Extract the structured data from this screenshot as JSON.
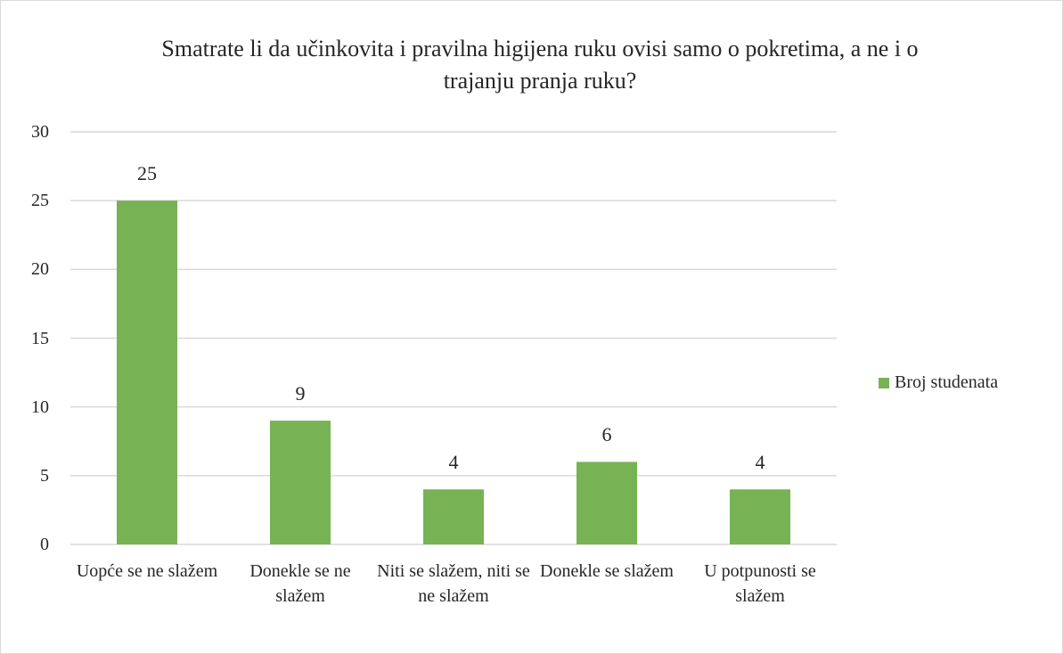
{
  "chart_data": {
    "type": "bar",
    "title": "Smatrate li da učinkovita i pravilna higijena ruku ovisi samo o pokretima, a ne i o trajanju pranja ruku?",
    "categories": [
      "Uopće se ne slažem",
      "Donekle se ne slažem",
      "Niti se slažem, niti se ne slažem",
      "Donekle se slažem",
      "U potpunosti se slažem"
    ],
    "series": [
      {
        "name": "Broj studenata",
        "color": "#77b254",
        "values": [
          25,
          9,
          4,
          6,
          4
        ]
      }
    ],
    "ylim": [
      0,
      30
    ],
    "yticks": [
      0,
      5,
      10,
      15,
      20,
      25,
      30
    ],
    "grid": true,
    "legend": "right"
  }
}
